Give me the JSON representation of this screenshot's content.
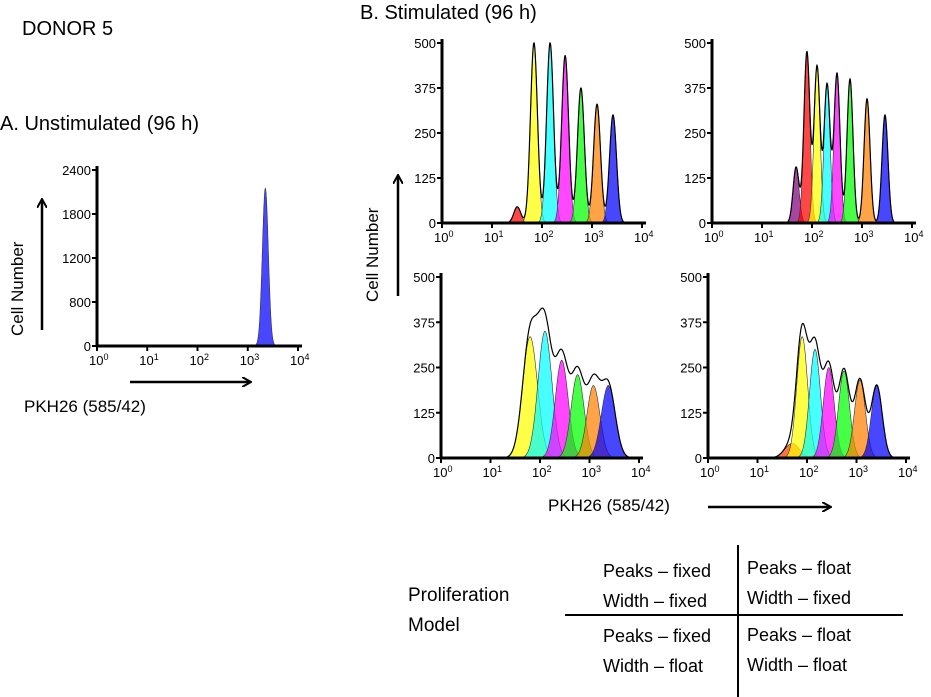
{
  "header": {
    "donor": "DONOR 5",
    "panel_a_title": "A. Unstimulated (96 h)",
    "panel_b_title": "B. Stimulated (96 h)"
  },
  "axis": {
    "ylabel": "Cell Number",
    "xlabel": "PKH26 (585/42)"
  },
  "legend_table": {
    "label_line1": "Proliferation",
    "label_line2": "Model",
    "cells": [
      [
        "Peaks – fixed",
        "Width – fixed"
      ],
      [
        "Peaks – float",
        "Width – fixed"
      ],
      [
        "Peaks – fixed",
        "Width – float"
      ],
      [
        "Peaks – float",
        "Width – float"
      ]
    ]
  },
  "chart_data": [
    {
      "id": "A",
      "type": "area",
      "xscale": "log",
      "xlim": [
        1,
        10000
      ],
      "ylim": [
        0,
        2400
      ],
      "xticks": [
        "10^0",
        "10^1",
        "10^2",
        "10^3",
        "10^4"
      ],
      "yticks": [
        "0",
        "800",
        "1200",
        "1800",
        "2400"
      ],
      "peaks": [
        {
          "center": 2240,
          "height": 2150,
          "sd_decades": 0.06,
          "color": "#0000ff"
        }
      ]
    },
    {
      "id": "B-fixed-fixed",
      "type": "area",
      "xscale": "log",
      "xlim": [
        1,
        10000
      ],
      "ylim": [
        0,
        500
      ],
      "xticks": [
        "10^0",
        "10^1",
        "10^2",
        "10^3",
        "10^4"
      ],
      "yticks": [
        "0",
        "125",
        "250",
        "375",
        "500"
      ],
      "peaks": [
        {
          "center": 32,
          "height": 45,
          "sd_decades": 0.07,
          "color": "#ff0000"
        },
        {
          "center": 69,
          "height": 500,
          "sd_decades": 0.07,
          "color": "#ffff00"
        },
        {
          "center": 145,
          "height": 500,
          "sd_decades": 0.07,
          "color": "#00ffff"
        },
        {
          "center": 290,
          "height": 465,
          "sd_decades": 0.07,
          "color": "#ff00ff"
        },
        {
          "center": 600,
          "height": 375,
          "sd_decades": 0.07,
          "color": "#00ff00"
        },
        {
          "center": 1260,
          "height": 330,
          "sd_decades": 0.07,
          "color": "#ff8000"
        },
        {
          "center": 2630,
          "height": 300,
          "sd_decades": 0.07,
          "color": "#0000ff"
        }
      ]
    },
    {
      "id": "B-float-fixed",
      "type": "area",
      "xscale": "log",
      "xlim": [
        1,
        10000
      ],
      "ylim": [
        0,
        500
      ],
      "xticks": [
        "10^0",
        "10^1",
        "10^2",
        "10^3",
        "10^4"
      ],
      "yticks": [
        "0",
        "125",
        "250",
        "375",
        "500"
      ],
      "peaks": [
        {
          "center": 48,
          "height": 155,
          "sd_decades": 0.06,
          "color": "#800080"
        },
        {
          "center": 79,
          "height": 475,
          "sd_decades": 0.06,
          "color": "#ff0000"
        },
        {
          "center": 126,
          "height": 435,
          "sd_decades": 0.06,
          "color": "#ffff00"
        },
        {
          "center": 200,
          "height": 385,
          "sd_decades": 0.06,
          "color": "#00ffff"
        },
        {
          "center": 316,
          "height": 415,
          "sd_decades": 0.06,
          "color": "#ff00ff"
        },
        {
          "center": 575,
          "height": 400,
          "sd_decades": 0.06,
          "color": "#00ff00"
        },
        {
          "center": 1260,
          "height": 345,
          "sd_decades": 0.06,
          "color": "#ff8000"
        },
        {
          "center": 2880,
          "height": 300,
          "sd_decades": 0.06,
          "color": "#0000ff"
        }
      ]
    },
    {
      "id": "B-fixed-float",
      "type": "area",
      "xscale": "log",
      "xlim": [
        1,
        10000
      ],
      "ylim": [
        0,
        500
      ],
      "xticks": [
        "10^0",
        "10^1",
        "10^2",
        "10^3",
        "10^4"
      ],
      "yticks": [
        "0",
        "125",
        "250",
        "375",
        "500"
      ],
      "peaks": [
        {
          "center": 63,
          "height": 335,
          "sd_decades": 0.15,
          "color": "#ffff00"
        },
        {
          "center": 126,
          "height": 350,
          "sd_decades": 0.14,
          "color": "#00ffff"
        },
        {
          "center": 275,
          "height": 270,
          "sd_decades": 0.13,
          "color": "#ff00ff"
        },
        {
          "center": 575,
          "height": 230,
          "sd_decades": 0.13,
          "color": "#00ff00"
        },
        {
          "center": 1200,
          "height": 200,
          "sd_decades": 0.13,
          "color": "#ff8000"
        },
        {
          "center": 2400,
          "height": 200,
          "sd_decades": 0.14,
          "color": "#0000ff"
        }
      ]
    },
    {
      "id": "B-float-float",
      "type": "area",
      "xscale": "log",
      "xlim": [
        1,
        10000
      ],
      "ylim": [
        0,
        500
      ],
      "xticks": [
        "10^0",
        "10^1",
        "10^2",
        "10^3",
        "10^4"
      ],
      "yticks": [
        "0",
        "125",
        "250",
        "375",
        "500"
      ],
      "peaks": [
        {
          "center": 50,
          "height": 40,
          "sd_decades": 0.15,
          "color": "#ff4000"
        },
        {
          "center": 80,
          "height": 335,
          "sd_decades": 0.11,
          "color": "#ffff00"
        },
        {
          "center": 145,
          "height": 300,
          "sd_decades": 0.11,
          "color": "#00ffff"
        },
        {
          "center": 275,
          "height": 250,
          "sd_decades": 0.11,
          "color": "#ff00ff"
        },
        {
          "center": 560,
          "height": 240,
          "sd_decades": 0.11,
          "color": "#00ff00"
        },
        {
          "center": 1175,
          "height": 215,
          "sd_decades": 0.11,
          "color": "#ff8000"
        },
        {
          "center": 2570,
          "height": 200,
          "sd_decades": 0.11,
          "color": "#0000ff"
        }
      ]
    }
  ]
}
